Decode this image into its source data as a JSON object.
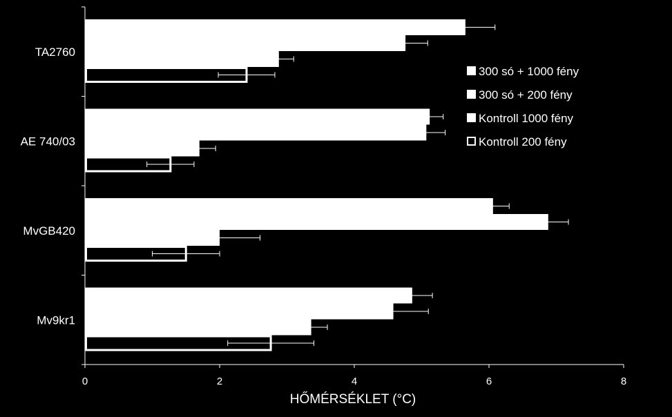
{
  "chart_data": {
    "type": "bar",
    "orientation": "horizontal",
    "categories": [
      "TA2760",
      "AE 740/03",
      "MvGB420",
      "Mv9kr1"
    ],
    "series": [
      {
        "name": "300 só + 1000 fény",
        "values": [
          5.65,
          5.12,
          6.06,
          4.86
        ],
        "errors": [
          0.44,
          0.2,
          0.24,
          0.3
        ],
        "fill": "#ffffff"
      },
      {
        "name": "300 só + 200 fény",
        "values": [
          4.76,
          5.07,
          6.88,
          4.58
        ],
        "errors": [
          0.33,
          0.28,
          0.3,
          0.52
        ],
        "fill": "#ffffff"
      },
      {
        "name": "Kontroll 1000 fény",
        "values": [
          2.88,
          1.7,
          2.0,
          3.36
        ],
        "errors": [
          0.22,
          0.24,
          0.6,
          0.24
        ],
        "fill": "#ffffff"
      },
      {
        "name": "Kontroll 200 fény",
        "values": [
          2.4,
          1.27,
          1.5,
          2.76
        ],
        "errors": [
          0.42,
          0.35,
          0.5,
          0.64
        ],
        "fill": "none"
      }
    ],
    "xlabel": "HŐMÉRSÉKLET (°C)",
    "xlim": [
      0,
      8
    ],
    "xticks": [
      "0",
      "2",
      "4",
      "6",
      "8"
    ],
    "grid": false,
    "legend_position": "right"
  },
  "colors": {
    "background": "#000000",
    "foreground": "#ffffff"
  }
}
